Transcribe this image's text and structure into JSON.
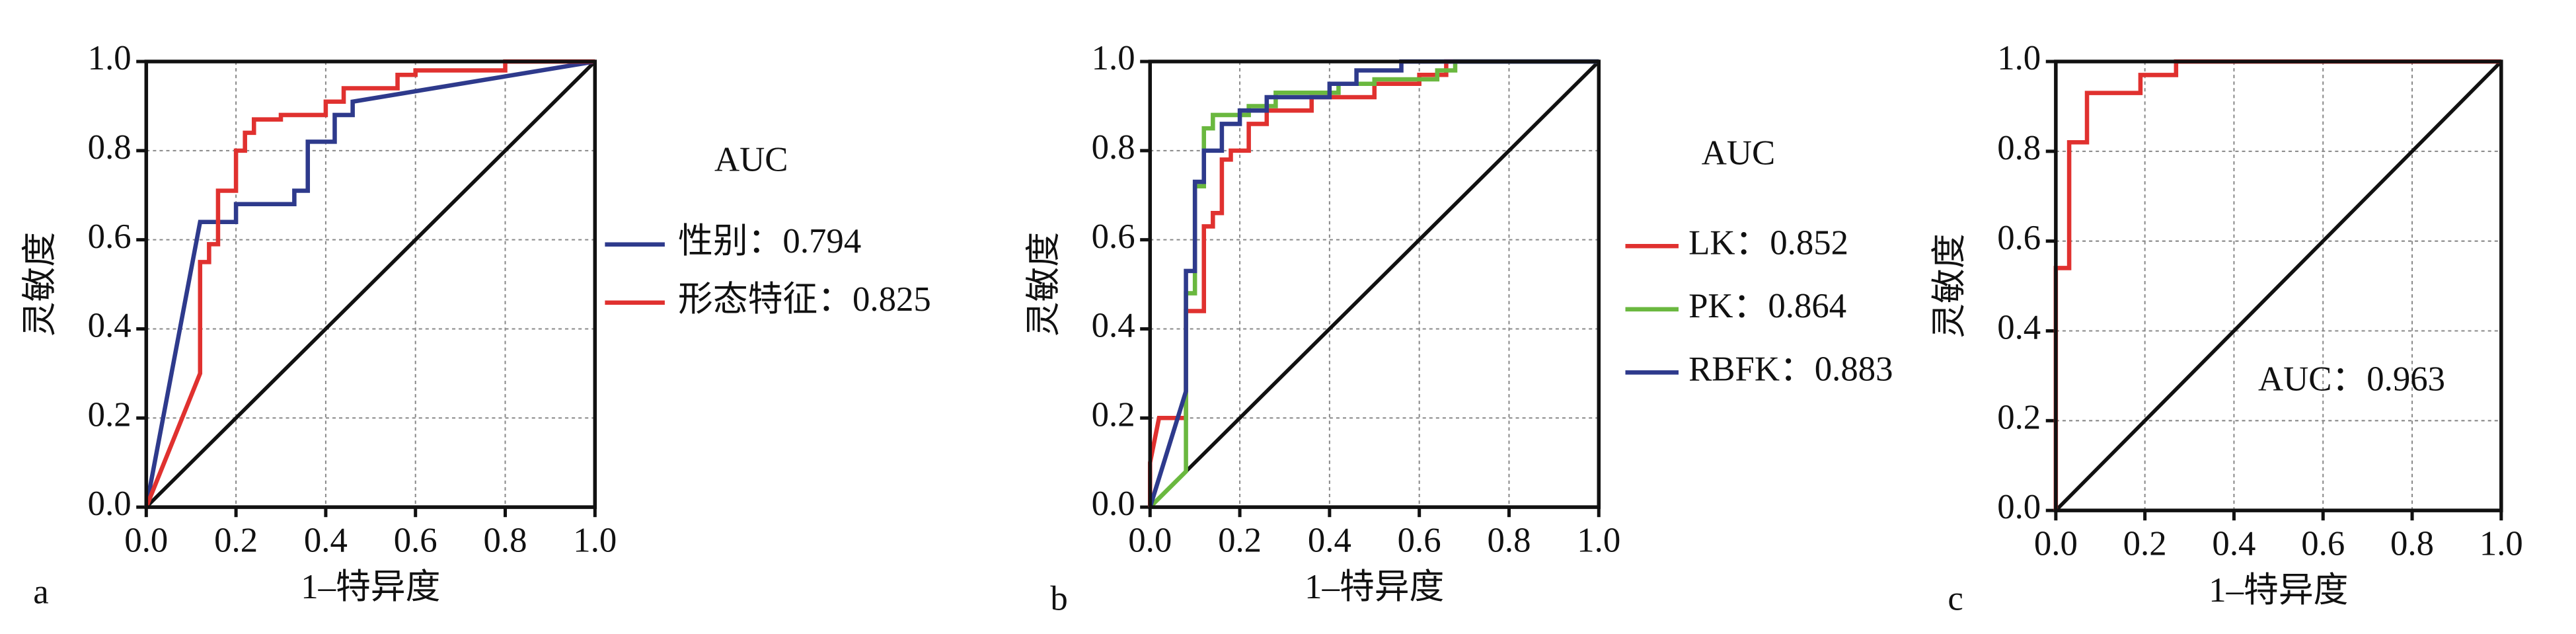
{
  "chart_data": [
    {
      "type": "line",
      "panel_label": "a",
      "x_label": "1–特异度",
      "y_label": "灵敏度",
      "legend_title": "AUC",
      "xlim": [
        0,
        1
      ],
      "ylim": [
        0,
        1
      ],
      "grid": true,
      "xticks": [
        {
          "value": 0,
          "label": "0.0"
        },
        0.2,
        0.4,
        0.6,
        0.8,
        {
          "value": 1,
          "label": "1.0"
        }
      ],
      "yticks": [
        {
          "value": 0,
          "label": "0.0"
        },
        0.2,
        0.4,
        0.6,
        0.8,
        {
          "value": 1,
          "label": "1.0"
        }
      ],
      "series": [
        {
          "name": "性别：0.794",
          "color": "#2e3a8c",
          "x": [
            0,
            0.12,
            0.2,
            0.2,
            0.33,
            0.33,
            0.36,
            0.36,
            0.36,
            0.42,
            0.42,
            0.46,
            0.46,
            1
          ],
          "values": [
            0,
            0.64,
            0.64,
            0.68,
            0.68,
            0.71,
            0.71,
            0.76,
            0.82,
            0.82,
            0.88,
            0.88,
            0.91,
            1
          ]
        },
        {
          "name": "形态特征：0.825",
          "color": "#e0312f",
          "x": [
            0,
            0.12,
            0.12,
            0.14,
            0.14,
            0.16,
            0.16,
            0.2,
            0.2,
            0.22,
            0.22,
            0.24,
            0.24,
            0.3,
            0.3,
            0.4,
            0.4,
            0.44,
            0.44,
            0.56,
            0.56,
            0.6,
            0.6,
            0.8,
            0.8,
            1
          ],
          "values": [
            0,
            0.3,
            0.55,
            0.55,
            0.59,
            0.59,
            0.71,
            0.71,
            0.8,
            0.8,
            0.84,
            0.84,
            0.87,
            0.87,
            0.88,
            0.88,
            0.91,
            0.91,
            0.94,
            0.94,
            0.97,
            0.97,
            0.98,
            0.98,
            1,
            1
          ]
        }
      ]
    },
    {
      "type": "line",
      "panel_label": "b",
      "x_label": "1–特异度",
      "y_label": "灵敏度",
      "legend_title": "AUC",
      "xlim": [
        0,
        1
      ],
      "ylim": [
        0,
        1
      ],
      "grid": true,
      "xticks": [
        {
          "value": 0,
          "label": "0.0"
        },
        0.2,
        0.4,
        0.6,
        0.8,
        {
          "value": 1,
          "label": "1.0"
        }
      ],
      "yticks": [
        {
          "value": 0,
          "label": "0.0"
        },
        0.2,
        0.4,
        0.6,
        0.8,
        {
          "value": 1,
          "label": "1.0"
        }
      ],
      "series": [
        {
          "name": "LK：0.852",
          "color": "#e0312f",
          "x": [
            0,
            0,
            0.02,
            0.08,
            0.08,
            0.12,
            0.12,
            0.14,
            0.14,
            0.16,
            0.16,
            0.18,
            0.18,
            0.22,
            0.22,
            0.26,
            0.26,
            0.36,
            0.36,
            0.5,
            0.5,
            0.6,
            0.6,
            0.66,
            0.66,
            1
          ],
          "values": [
            0,
            0.1,
            0.2,
            0.2,
            0.44,
            0.44,
            0.63,
            0.63,
            0.66,
            0.66,
            0.78,
            0.78,
            0.8,
            0.8,
            0.86,
            0.86,
            0.89,
            0.89,
            0.92,
            0.92,
            0.95,
            0.95,
            0.97,
            0.97,
            1,
            1
          ]
        },
        {
          "name": "PK：0.864",
          "color": "#6ab83f",
          "x": [
            0,
            0.08,
            0.08,
            0.1,
            0.1,
            0.12,
            0.12,
            0.14,
            0.14,
            0.22,
            0.22,
            0.28,
            0.28,
            0.42,
            0.42,
            0.5,
            0.5,
            0.64,
            0.64,
            0.68,
            0.68,
            1
          ],
          "values": [
            0,
            0.08,
            0.48,
            0.48,
            0.72,
            0.72,
            0.85,
            0.85,
            0.88,
            0.88,
            0.9,
            0.9,
            0.93,
            0.93,
            0.95,
            0.95,
            0.96,
            0.96,
            0.98,
            0.98,
            1,
            1
          ]
        },
        {
          "name": "RBFK：0.883",
          "color": "#2e3a8c",
          "x": [
            0,
            0.08,
            0.08,
            0.1,
            0.1,
            0.12,
            0.12,
            0.16,
            0.16,
            0.2,
            0.2,
            0.26,
            0.26,
            0.4,
            0.4,
            0.46,
            0.46,
            0.56,
            0.56,
            1
          ],
          "values": [
            0,
            0.26,
            0.53,
            0.53,
            0.73,
            0.73,
            0.8,
            0.8,
            0.86,
            0.86,
            0.89,
            0.89,
            0.92,
            0.92,
            0.95,
            0.95,
            0.98,
            0.98,
            1,
            1
          ]
        }
      ]
    },
    {
      "type": "line",
      "panel_label": "c",
      "x_label": "1–特异度",
      "y_label": "灵敏度",
      "annotation": "AUC：0.963",
      "xlim": [
        0,
        1
      ],
      "ylim": [
        0,
        1
      ],
      "grid": true,
      "xticks": [
        {
          "value": 0,
          "label": "0.0"
        },
        0.2,
        0.4,
        0.6,
        0.8,
        {
          "value": 1,
          "label": "1.0"
        }
      ],
      "yticks": [
        {
          "value": 0,
          "label": "0.0"
        },
        0.2,
        0.4,
        0.6,
        0.8,
        {
          "value": 1,
          "label": "1.0"
        }
      ],
      "series": [
        {
          "color": "#e0312f",
          "x": [
            0,
            0,
            0.03,
            0.03,
            0.07,
            0.07,
            0.19,
            0.19,
            0.27,
            0.27,
            1
          ],
          "values": [
            0,
            0.54,
            0.54,
            0.82,
            0.82,
            0.93,
            0.93,
            0.97,
            0.97,
            1,
            1
          ]
        }
      ]
    }
  ]
}
